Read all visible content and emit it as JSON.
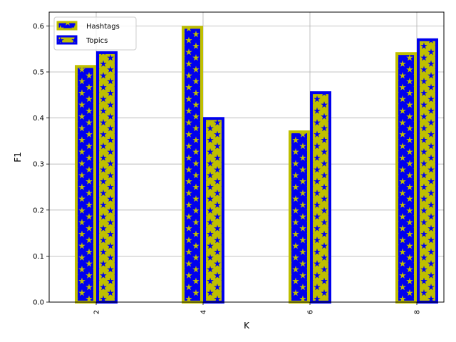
{
  "chart_data": {
    "type": "bar",
    "title": "",
    "xlabel": "K",
    "ylabel": "F1",
    "categories": [
      "2",
      "4",
      "6",
      "8"
    ],
    "series": [
      {
        "name": "Hashtags",
        "values": [
          0.515,
          0.6,
          0.373,
          0.543
        ]
      },
      {
        "name": "Topics",
        "values": [
          0.545,
          0.402,
          0.458,
          0.573
        ]
      }
    ],
    "ylim": [
      0.0,
      0.63
    ],
    "yticks": [
      "0.0",
      "0.1",
      "0.2",
      "0.3",
      "0.4",
      "0.5",
      "0.6"
    ],
    "grid": true,
    "legend_position": "top-left",
    "colors": {
      "blue": "#0000ee",
      "olive": "#bfbf00",
      "grid": "#b0b0b0"
    }
  }
}
